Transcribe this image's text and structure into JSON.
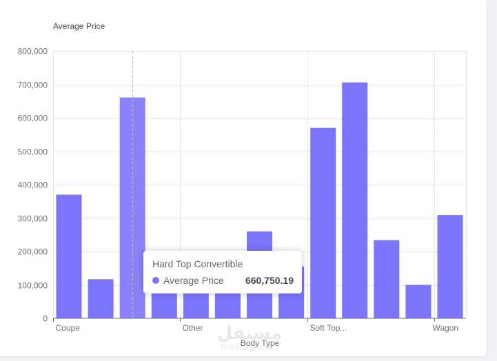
{
  "chart_data": {
    "type": "bar",
    "ylabel": "Average Price",
    "xlabel": "Body Type",
    "ylim": [
      0,
      800000
    ],
    "yticks": [
      "0",
      "100,000",
      "200,000",
      "300,000",
      "400,000",
      "500,000",
      "600,000",
      "700,000",
      "800,000"
    ],
    "xtick_labels": [
      "Coupe",
      "Other",
      "Soft Top...",
      "Wagon"
    ],
    "grid": true,
    "bar_color": "#7c74fa",
    "highlight_color": "#8a82fb",
    "series": [
      {
        "values": [
          370000,
          117000,
          660750.19,
          150000,
          140000,
          130000,
          260000,
          155000,
          570000,
          706000,
          234000,
          100000,
          309000
        ]
      }
    ]
  },
  "tooltip": {
    "title": "Hard Top Convertible",
    "series_name": "Average Price",
    "value": "660,750.19",
    "color": "#7c74fa"
  },
  "watermark": {
    "main": "مستقل",
    "sub": "mostaql.com"
  }
}
